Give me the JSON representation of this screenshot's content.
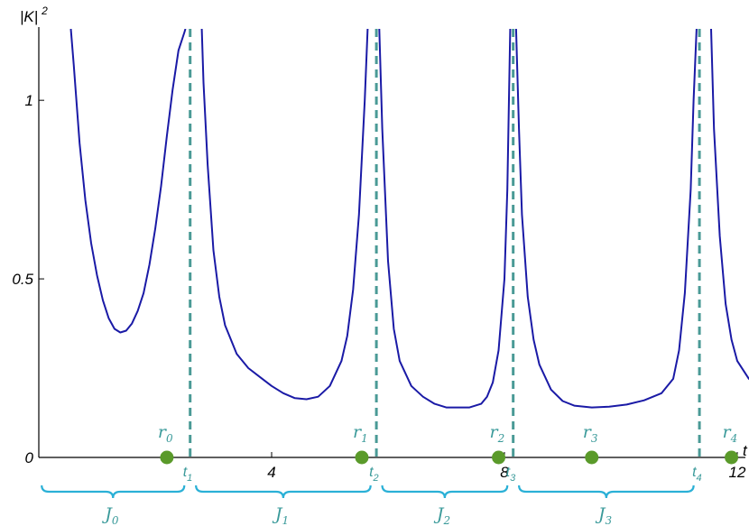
{
  "chart_data": {
    "type": "line",
    "title": "",
    "ylabel": "|K|",
    "ylabel_exponent": "2",
    "xlabel": "t",
    "xlim": [
      0,
      12
    ],
    "ylim": [
      0,
      1.2
    ],
    "x_ticks": [
      {
        "value": 4,
        "label": "4"
      },
      {
        "value": 8,
        "label": "8"
      },
      {
        "value": 12,
        "label": "12"
      }
    ],
    "y_ticks": [
      {
        "value": 0,
        "label": "0"
      },
      {
        "value": 0.5,
        "label": "0.5"
      },
      {
        "value": 1,
        "label": "1"
      }
    ],
    "series": [
      {
        "color": "#1a1aa6",
        "x": [
          0.55,
          0.6,
          0.7,
          0.8,
          0.9,
          1.0,
          1.1,
          1.2,
          1.3,
          1.4,
          1.5,
          1.6,
          1.7,
          1.8,
          1.9,
          2.0,
          2.1,
          2.2,
          2.3,
          2.4,
          2.5,
          2.52
        ],
        "y": [
          1.2,
          1.1,
          0.88,
          0.72,
          0.6,
          0.51,
          0.44,
          0.39,
          0.36,
          0.35,
          0.355,
          0.375,
          0.41,
          0.46,
          0.54,
          0.64,
          0.76,
          0.9,
          1.03,
          1.14,
          1.19,
          1.2
        ]
      },
      {
        "color": "#1a1aa6",
        "x": [
          2.8,
          2.83,
          2.9,
          3.0,
          3.1,
          3.2,
          3.4,
          3.6,
          3.8,
          4.0,
          4.2,
          4.4,
          4.6,
          4.8,
          5.0,
          5.2,
          5.3,
          5.4,
          5.5,
          5.6,
          5.65
        ],
        "y": [
          1.2,
          1.05,
          0.82,
          0.58,
          0.45,
          0.37,
          0.29,
          0.25,
          0.225,
          0.2,
          0.18,
          0.166,
          0.163,
          0.17,
          0.2,
          0.27,
          0.34,
          0.47,
          0.68,
          1.0,
          1.2
        ]
      },
      {
        "color": "#1a1aa6",
        "x": [
          5.85,
          5.9,
          6.0,
          6.1,
          6.2,
          6.4,
          6.6,
          6.8,
          7.0,
          7.2,
          7.4,
          7.6,
          7.7,
          7.8,
          7.9,
          8.0,
          8.05,
          8.1
        ],
        "y": [
          1.2,
          0.92,
          0.55,
          0.36,
          0.27,
          0.2,
          0.17,
          0.15,
          0.14,
          0.14,
          0.14,
          0.15,
          0.17,
          0.21,
          0.3,
          0.5,
          0.75,
          1.2
        ]
      },
      {
        "color": "#1a1aa6",
        "x": [
          8.2,
          8.25,
          8.3,
          8.4,
          8.5,
          8.6,
          8.8,
          9.0,
          9.2,
          9.5,
          9.8,
          10.1,
          10.4,
          10.7,
          10.9,
          11.0,
          11.1,
          11.2,
          11.25,
          11.3
        ],
        "y": [
          1.2,
          0.92,
          0.68,
          0.45,
          0.33,
          0.26,
          0.19,
          0.158,
          0.145,
          0.14,
          0.142,
          0.148,
          0.16,
          0.18,
          0.22,
          0.3,
          0.46,
          0.75,
          1.0,
          1.2
        ]
      },
      {
        "color": "#1a1aa6",
        "x": [
          11.55,
          11.6,
          11.7,
          11.8,
          11.9,
          12.0,
          12.2,
          12.4,
          12.6,
          12.8,
          13.0,
          13.3
        ],
        "y": [
          1.2,
          0.92,
          0.62,
          0.43,
          0.33,
          0.27,
          0.22,
          0.205,
          0.2,
          0.2,
          0.205,
          0.215
        ]
      }
    ],
    "dashed_lines": [
      {
        "x": 2.6,
        "label": "t",
        "sub": "1"
      },
      {
        "x": 5.8,
        "label": "t",
        "sub": "2"
      },
      {
        "x": 8.15,
        "label": "t",
        "sub": "3"
      },
      {
        "x": 11.35,
        "label": "t",
        "sub": "4"
      }
    ],
    "points": [
      {
        "x": 2.2,
        "y": 0,
        "label": "r",
        "sub": "0"
      },
      {
        "x": 5.55,
        "y": 0,
        "label": "r",
        "sub": "1"
      },
      {
        "x": 7.9,
        "y": 0,
        "label": "r",
        "sub": "2"
      },
      {
        "x": 9.5,
        "y": 0,
        "label": "r",
        "sub": "3"
      },
      {
        "x": 11.9,
        "y": 0,
        "label": "r",
        "sub": "4"
      }
    ],
    "intervals": [
      {
        "from": 0.05,
        "to": 2.5,
        "label": "J",
        "sub": "0"
      },
      {
        "from": 2.7,
        "to": 5.7,
        "label": "J",
        "sub": "1"
      },
      {
        "from": 5.9,
        "to": 8.05,
        "label": "J",
        "sub": "2"
      },
      {
        "from": 8.25,
        "to": 11.25,
        "label": "J",
        "sub": "3"
      }
    ],
    "colors": {
      "curve": "#1a1aa6",
      "dashed": "#4a9a96",
      "points": "#5a9a2a",
      "labels": "#3a9a9a",
      "braces": "#2ab0d6",
      "axis": "#000000"
    }
  }
}
